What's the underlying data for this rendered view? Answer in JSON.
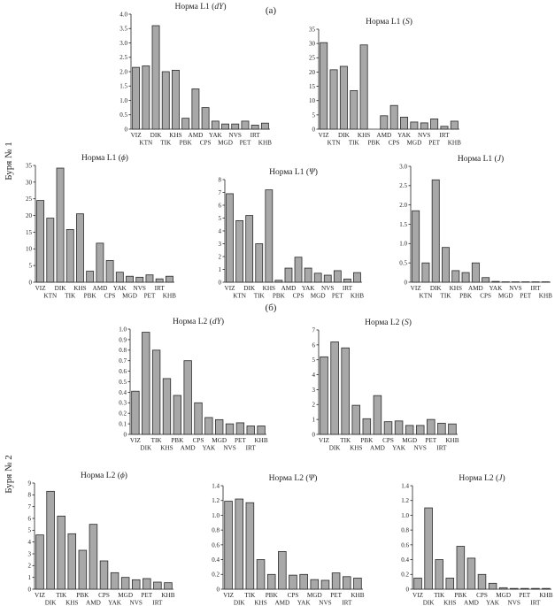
{
  "page": {
    "panel_a": "(а)",
    "panel_b": "(б)",
    "storm1": "Буря № 1",
    "storm2": "Буря № 2"
  },
  "chart_data": [
    {
      "id": "c1",
      "type": "bar",
      "title": "Норма L1 (dY)",
      "title_main": "Норма L1 (",
      "title_var": "dY",
      "title_end": ")",
      "categories": [
        "VIZ",
        "KTN",
        "DIK",
        "TIK",
        "KHS",
        "PBK",
        "AMD",
        "CPS",
        "YAK",
        "MGD",
        "NVS",
        "PET",
        "IRT",
        "KHB"
      ],
      "values": [
        2.15,
        2.2,
        3.6,
        2.0,
        2.05,
        0.38,
        1.4,
        0.75,
        0.28,
        0.18,
        0.18,
        0.28,
        0.14,
        0.21
      ],
      "ylim": [
        0,
        4.0
      ],
      "yticks": [
        "0",
        "0.5",
        "1.0",
        "1.5",
        "2.0",
        "2.5",
        "3.0",
        "3.5",
        "4.0"
      ]
    },
    {
      "id": "c2",
      "type": "bar",
      "title": "Норма L1 (S)",
      "title_main": "Норма L1 (",
      "title_var": "S",
      "title_end": ")",
      "categories": [
        "VIZ",
        "KTN",
        "DIK",
        "TIK",
        "KHS",
        "PBK",
        "AMD",
        "CPS",
        "YAK",
        "MGD",
        "NVS",
        "PET",
        "IRT",
        "KHB"
      ],
      "values": [
        30.3,
        20.8,
        22.0,
        13.5,
        29.5,
        0.0,
        4.7,
        8.3,
        4.2,
        2.5,
        2.2,
        3.6,
        1.0,
        2.8
      ],
      "ylim": [
        0,
        35
      ],
      "yticks": [
        "0",
        "5",
        "10",
        "15",
        "20",
        "25",
        "30",
        "35"
      ]
    },
    {
      "id": "c3",
      "type": "bar",
      "title": "Норма L1 (ϕ)",
      "title_main": "Норма L1 (",
      "title_var": "ϕ",
      "title_end": ")",
      "categories": [
        "VIZ",
        "KTN",
        "DIK",
        "TIK",
        "KHS",
        "PBK",
        "AMD",
        "CPS",
        "YAK",
        "MGD",
        "NVS",
        "PET",
        "IRT",
        "KHB"
      ],
      "values": [
        24.5,
        19.2,
        34.2,
        15.8,
        20.5,
        3.3,
        11.7,
        6.5,
        3.0,
        1.8,
        1.5,
        2.2,
        1.0,
        1.8
      ],
      "ylim": [
        0,
        35
      ],
      "yticks": [
        "0",
        "5",
        "10",
        "15",
        "20",
        "25",
        "30",
        "35"
      ]
    },
    {
      "id": "c4",
      "type": "bar",
      "title": "Норма L1 (Ψ)",
      "title_main": "Норма L1 (",
      "title_var": "Ψ",
      "title_end": ")",
      "categories": [
        "VIZ",
        "KTN",
        "DIK",
        "TIK",
        "KHS",
        "PBK",
        "AMD",
        "CPS",
        "YAK",
        "MGD",
        "NVS",
        "PET",
        "IRT",
        "KHB"
      ],
      "values": [
        6.9,
        4.8,
        5.2,
        3.0,
        7.2,
        0.15,
        1.1,
        1.95,
        1.1,
        0.7,
        0.55,
        0.9,
        0.25,
        0.75
      ],
      "ylim": [
        0,
        8
      ],
      "yticks": [
        "0",
        "1",
        "2",
        "3",
        "4",
        "5",
        "6",
        "7",
        "8"
      ]
    },
    {
      "id": "c5",
      "type": "bar",
      "title": "Норма L1 (J)",
      "title_main": "Норма L1 (",
      "title_var": "J",
      "title_end": ")",
      "categories": [
        "VIZ",
        "KTN",
        "DIK",
        "TIK",
        "KHS",
        "PBK",
        "AMD",
        "CPS",
        "YAK",
        "MGD",
        "NVS",
        "PET",
        "IRT",
        "KHB"
      ],
      "values": [
        1.85,
        0.5,
        2.65,
        0.9,
        0.3,
        0.25,
        0.5,
        0.12,
        0.02,
        0.01,
        0.01,
        0.01,
        0.01,
        0.01
      ],
      "ylim": [
        0,
        3.0
      ],
      "yticks": [
        "0",
        "0.5",
        "1.0",
        "1.5",
        "2.0",
        "2.5",
        "3.0"
      ]
    },
    {
      "id": "c6",
      "type": "bar",
      "title": "Норма L2 (dY)",
      "title_main": "Норма L2 (",
      "title_var": "dY",
      "title_end": ")",
      "categories": [
        "VIZ",
        "DIK",
        "TIK",
        "KHS",
        "PBK",
        "AMD",
        "CPS",
        "YAK",
        "MGD",
        "NVS",
        "PET",
        "IRT",
        "KHB"
      ],
      "values": [
        0.41,
        0.97,
        0.8,
        0.53,
        0.37,
        0.7,
        0.3,
        0.16,
        0.14,
        0.1,
        0.11,
        0.08,
        0.08
      ],
      "ylim": [
        0,
        1.0
      ],
      "yticks": [
        "0",
        "0.1",
        "0.2",
        "0.3",
        "0.4",
        "0.5",
        "0.6",
        "0.7",
        "0.8",
        "0.9",
        "1.0"
      ]
    },
    {
      "id": "c7",
      "type": "bar",
      "title": "Норма L2 (S)",
      "title_main": "Норма L2 (",
      "title_var": "S",
      "title_end": ")",
      "categories": [
        "VIZ",
        "DIK",
        "TIK",
        "KHS",
        "PBK",
        "AMD",
        "CPS",
        "YAK",
        "MGD",
        "NVS",
        "PET",
        "IRT",
        "KHB"
      ],
      "values": [
        5.2,
        6.2,
        5.8,
        1.95,
        1.05,
        2.6,
        0.85,
        0.9,
        0.6,
        0.6,
        1.0,
        0.75,
        0.7
      ],
      "ylim": [
        0,
        7
      ],
      "yticks": [
        "0",
        "1",
        "2",
        "3",
        "4",
        "5",
        "6",
        "7"
      ]
    },
    {
      "id": "c8",
      "type": "bar",
      "title": "Норма L2 (ϕ)",
      "title_main": "Норма L2 (",
      "title_var": "ϕ",
      "title_end": ")",
      "categories": [
        "VIZ",
        "DIK",
        "TIK",
        "KHS",
        "PBK",
        "AMD",
        "CPS",
        "YAK",
        "MGD",
        "NVS",
        "PET",
        "IRT",
        "KHB"
      ],
      "values": [
        4.6,
        8.3,
        6.2,
        4.7,
        3.3,
        5.5,
        2.4,
        1.4,
        1.0,
        0.8,
        0.9,
        0.6,
        0.55
      ],
      "ylim": [
        0,
        9
      ],
      "yticks": [
        "0",
        "1",
        "2",
        "3",
        "4",
        "5",
        "6",
        "7",
        "8",
        "9"
      ]
    },
    {
      "id": "c9",
      "type": "bar",
      "title": "Норма L2 (Ψ)",
      "title_main": "Норма L2 (",
      "title_var": "Ψ",
      "title_end": ")",
      "categories": [
        "VIZ",
        "DIK",
        "TIK",
        "KHS",
        "PBK",
        "AMD",
        "CPS",
        "YAK",
        "MGD",
        "NVS",
        "PET",
        "IRT",
        "KHB"
      ],
      "values": [
        1.19,
        1.22,
        1.17,
        0.4,
        0.2,
        0.51,
        0.19,
        0.2,
        0.13,
        0.12,
        0.22,
        0.17,
        0.15
      ],
      "ylim": [
        0,
        1.4
      ],
      "yticks": [
        "0",
        "0.2",
        "0.4",
        "0.6",
        "0.8",
        "1.0",
        "1.2",
        "1.4"
      ]
    },
    {
      "id": "c10",
      "type": "bar",
      "title": "Норма L2 (J)",
      "title_main": "Норма L2 (",
      "title_var": "J",
      "title_end": ")",
      "categories": [
        "VIZ",
        "DIK",
        "TIK",
        "KHS",
        "PBK",
        "AMD",
        "CPS",
        "YAK",
        "MGD",
        "NVS",
        "PET",
        "IRT",
        "KHB"
      ],
      "values": [
        0.15,
        1.1,
        0.4,
        0.15,
        0.58,
        0.42,
        0.2,
        0.08,
        0.02,
        0.01,
        0.01,
        0.01,
        0.01
      ],
      "ylim": [
        0,
        1.4
      ],
      "yticks": [
        "0",
        "0.2",
        "0.4",
        "0.6",
        "0.8",
        "1.0",
        "1.2",
        "1.4"
      ]
    }
  ]
}
